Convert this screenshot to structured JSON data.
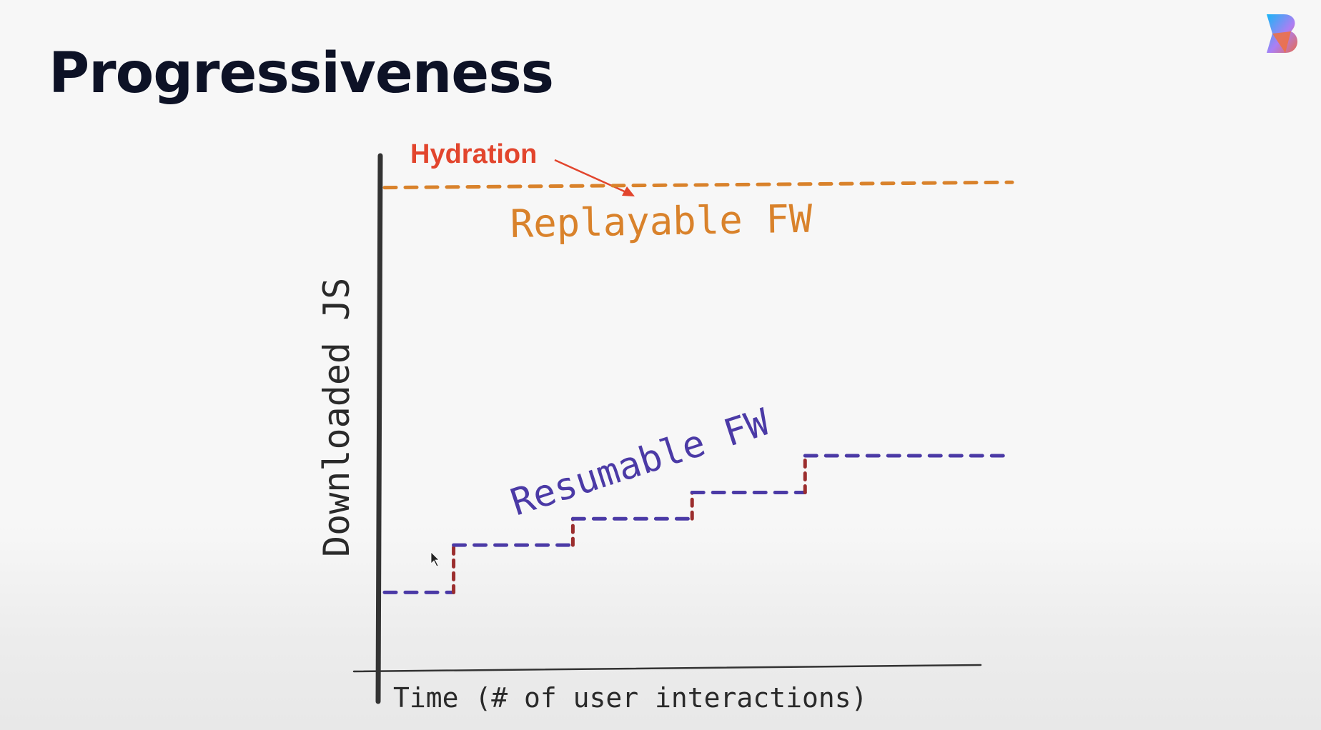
{
  "slide": {
    "title": "Progressiveness",
    "logo_icon": "brand-b-logo"
  },
  "chart_data": {
    "type": "line",
    "title": "",
    "xlabel": "Time (# of user interactions)",
    "ylabel": "Downloaded JS",
    "xlim": [
      0,
      10
    ],
    "ylim": [
      0,
      10
    ],
    "grid": false,
    "legend": "none",
    "series": [
      {
        "name": "Replayable FW",
        "color": "#d9822b",
        "style": "dashed",
        "x": [
          0,
          10
        ],
        "y": [
          9.0,
          9.1
        ]
      },
      {
        "name": "Resumable FW",
        "color": "#4b3aa6",
        "step_color": "#9b2d2d",
        "style": "dashed-steps",
        "x": [
          0,
          1.1,
          1.1,
          3.0,
          3.0,
          4.9,
          4.9,
          6.7,
          6.7,
          10
        ],
        "y": [
          1.3,
          1.3,
          2.2,
          2.2,
          2.7,
          2.7,
          3.2,
          3.2,
          3.9,
          3.9
        ]
      }
    ],
    "annotations": [
      {
        "text": "Hydration",
        "color": "#e2452d",
        "points_to": "Replayable FW"
      }
    ]
  }
}
